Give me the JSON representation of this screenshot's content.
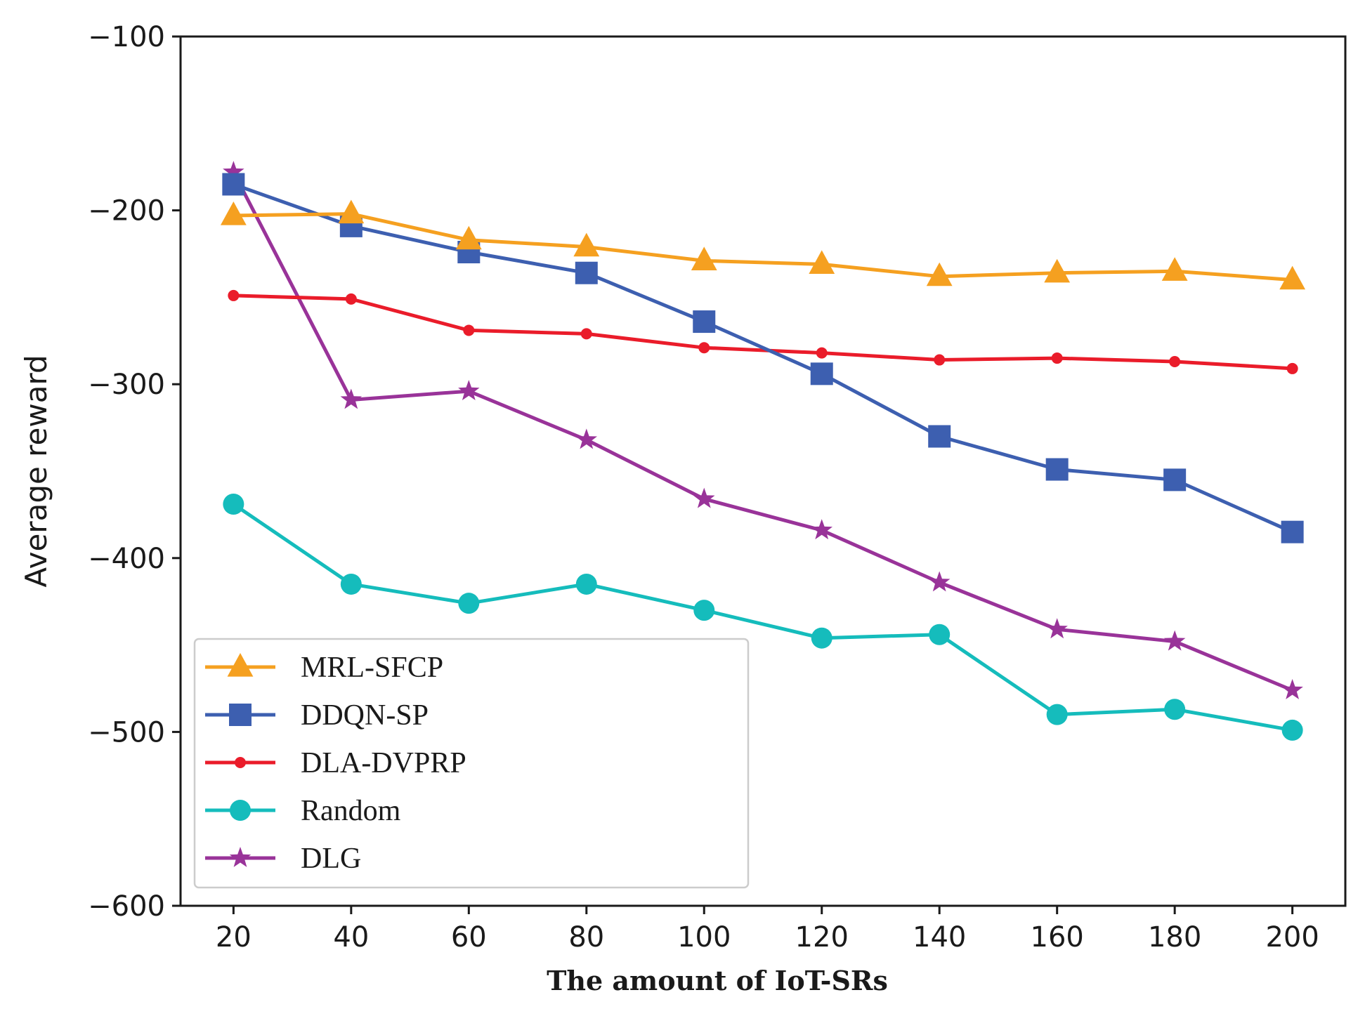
{
  "chart_data": {
    "type": "line",
    "xlabel": "The amount of IoT-SRs",
    "ylabel": "Average reward",
    "x": [
      20,
      40,
      60,
      80,
      100,
      120,
      140,
      160,
      180,
      200
    ],
    "xticks": [
      "20",
      "40",
      "60",
      "80",
      "100",
      "120",
      "140",
      "160",
      "180",
      "200"
    ],
    "xlim": [
      11,
      209
    ],
    "ylim": [
      -600,
      -100
    ],
    "yticks": [
      -100,
      -200,
      -300,
      -400,
      -500,
      -600
    ],
    "ytick_labels": [
      "−100",
      "−200",
      "−300",
      "−400",
      "−500",
      "−600"
    ],
    "grid": false,
    "legend_position": "lower-left",
    "series": [
      {
        "name": "MRL-SFCP",
        "color": "#f5a020",
        "marker": "triangle",
        "values": [
          -203,
          -202,
          -217,
          -221,
          -229,
          -231,
          -238,
          -236,
          -235,
          -240
        ]
      },
      {
        "name": "DDQN-SP",
        "color": "#3d5fb0",
        "marker": "square",
        "values": [
          -185,
          -209,
          -224,
          -236,
          -264,
          -294,
          -330,
          -349,
          -355,
          -385
        ]
      },
      {
        "name": "DLA-DVPRP",
        "color": "#ea1c2a",
        "marker": "dot",
        "values": [
          -249,
          -251,
          -269,
          -271,
          -279,
          -282,
          -286,
          -285,
          -287,
          -291
        ]
      },
      {
        "name": "Random",
        "color": "#15bcbc",
        "marker": "circle",
        "values": [
          -369,
          -415,
          -426,
          -415,
          -430,
          -446,
          -444,
          -490,
          -487,
          -499
        ]
      },
      {
        "name": "DLG",
        "color": "#993399",
        "marker": "star",
        "values": [
          -178,
          -309,
          -304,
          -332,
          -366,
          -384,
          -414,
          -441,
          -448,
          -476
        ]
      }
    ]
  }
}
